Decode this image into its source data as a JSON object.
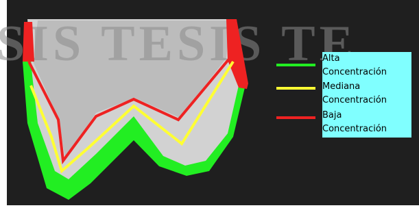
{
  "watermark": "SIS   TESIS   TE",
  "legend": [
    {
      "label": "Alta Concentración",
      "color": "#22ee22"
    },
    {
      "label": "Mediana Concentración",
      "color": "#ffff33"
    },
    {
      "label": "Baja Concentración",
      "color": "#ee2222"
    }
  ]
}
